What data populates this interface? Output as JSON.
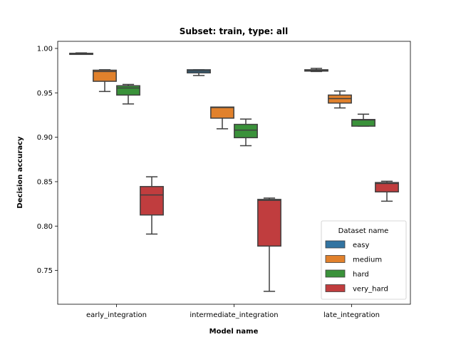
{
  "chart_data": {
    "type": "box",
    "title": "Subset: train, type: all",
    "xlabel": "Model name",
    "ylabel": "Decision accuracy",
    "ylim": [
      0.712,
      1.008
    ],
    "yticks": [
      0.75,
      0.8,
      0.85,
      0.9,
      0.95,
      1.0
    ],
    "ytick_labels": [
      "0.75",
      "0.80",
      "0.85",
      "0.90",
      "0.95",
      "1.00"
    ],
    "grid": false,
    "legend": {
      "title": "Dataset name",
      "location": "lower right"
    },
    "categories": [
      "early_integration",
      "intermediate_integration",
      "late_integration"
    ],
    "series": [
      {
        "name": "easy",
        "color": "#3274a1",
        "boxes": [
          {
            "whisker_low": 0.9935,
            "q1": 0.9935,
            "median": 0.994,
            "q3": 0.9945,
            "whisker_high": 0.995
          },
          {
            "whisker_low": 0.9695,
            "q1": 0.9725,
            "median": 0.9745,
            "q3": 0.976,
            "whisker_high": 0.976
          },
          {
            "whisker_low": 0.974,
            "q1": 0.9745,
            "median": 0.975,
            "q3": 0.976,
            "whisker_high": 0.9775
          }
        ]
      },
      {
        "name": "medium",
        "color": "#e1812c",
        "boxes": [
          {
            "whisker_low": 0.9515,
            "q1": 0.963,
            "median": 0.974,
            "q3": 0.9755,
            "whisker_high": 0.976
          },
          {
            "whisker_low": 0.9095,
            "q1": 0.9215,
            "median": 0.9335,
            "q3": 0.934,
            "whisker_high": 0.934
          },
          {
            "whisker_low": 0.933,
            "q1": 0.9385,
            "median": 0.9435,
            "q3": 0.9475,
            "whisker_high": 0.952
          }
        ]
      },
      {
        "name": "hard",
        "color": "#3a923a",
        "boxes": [
          {
            "whisker_low": 0.9375,
            "q1": 0.9475,
            "median": 0.9555,
            "q3": 0.958,
            "whisker_high": 0.9595
          },
          {
            "whisker_low": 0.8905,
            "q1": 0.8995,
            "median": 0.908,
            "q3": 0.9145,
            "whisker_high": 0.9205
          },
          {
            "whisker_low": 0.9125,
            "q1": 0.9125,
            "median": 0.9195,
            "q3": 0.92,
            "whisker_high": 0.926
          }
        ]
      },
      {
        "name": "very_hard",
        "color": "#c03d3e",
        "boxes": [
          {
            "whisker_low": 0.791,
            "q1": 0.8125,
            "median": 0.835,
            "q3": 0.8445,
            "whisker_high": 0.8555
          },
          {
            "whisker_low": 0.7265,
            "q1": 0.7775,
            "median": 0.829,
            "q3": 0.83,
            "whisker_high": 0.8315
          },
          {
            "whisker_low": 0.828,
            "q1": 0.8385,
            "median": 0.848,
            "q3": 0.849,
            "whisker_high": 0.8505
          }
        ]
      }
    ]
  }
}
